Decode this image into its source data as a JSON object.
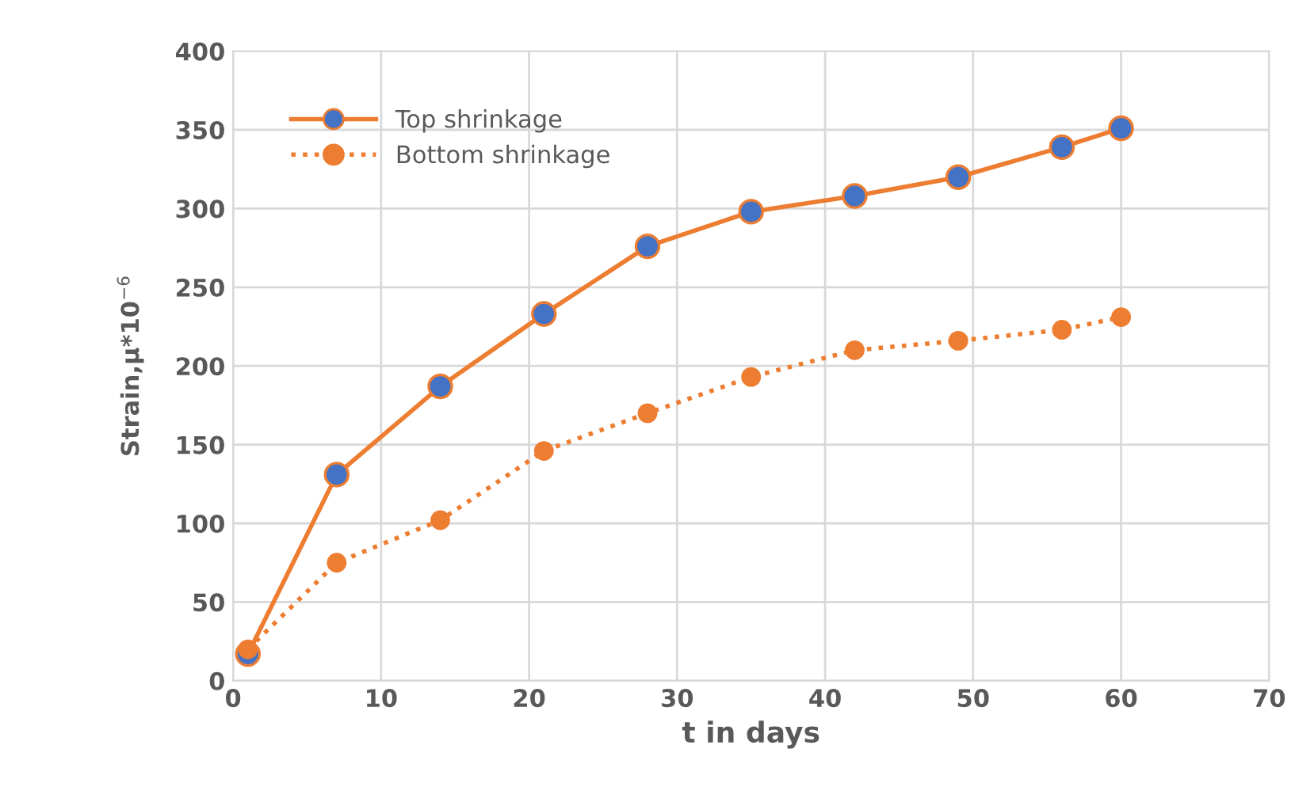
{
  "chart_data": {
    "type": "line",
    "xlabel": "t in days",
    "ylabel": "Strain,µ*10$^{−6}$",
    "x": [
      1,
      7,
      14,
      21,
      28,
      35,
      42,
      49,
      56,
      60
    ],
    "series": [
      {
        "name": "Top shrinkage",
        "color": "#ed7d31",
        "colors": [
          "#4472c4",
          "#4472c4",
          "#4472c4",
          "#4472c4",
          "#4472c4",
          "#4472c4",
          "#4472c4",
          "#4472c4",
          "#4472c4",
          "#4472c4"
        ],
        "line_style": "solid",
        "values": [
          17,
          131,
          187,
          233,
          276,
          298,
          308,
          320,
          339,
          351
        ]
      },
      {
        "name": "Bottom shrinkage",
        "color": "#ed7d31",
        "line_style": "dotted",
        "values": [
          20,
          75,
          102,
          146,
          170,
          193,
          210,
          216,
          223,
          231
        ]
      }
    ],
    "xlim": [
      0,
      70
    ],
    "xticks": [
      0,
      10,
      20,
      30,
      40,
      50,
      60,
      70
    ],
    "ylim": [
      0,
      400
    ],
    "yticks": [
      0,
      50,
      100,
      150,
      200,
      250,
      300,
      350,
      400
    ],
    "grid": true,
    "legend": "top left",
    "marker": "circle"
  }
}
